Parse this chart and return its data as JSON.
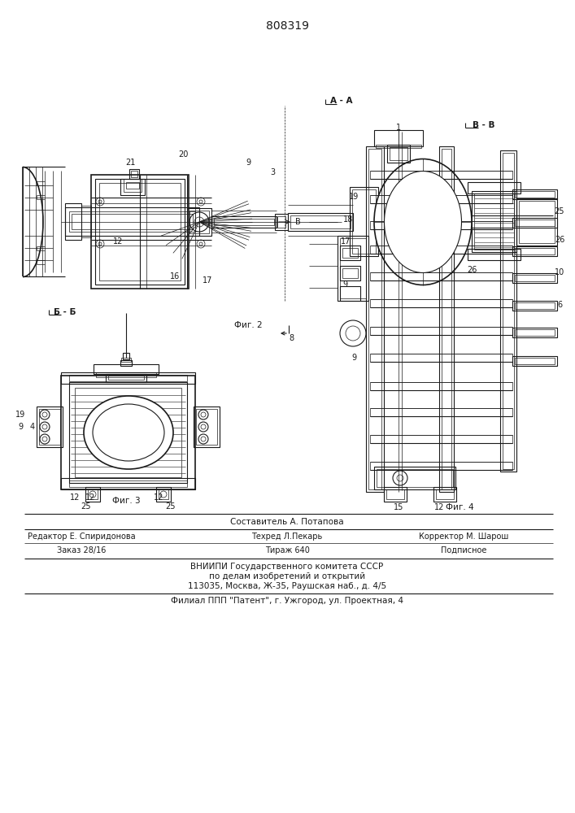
{
  "patent_number": "808319",
  "compositor": "Составитель А. Потапова",
  "editor": "Редактор Е. Спиридонова",
  "techred": "Техред Л.Пекарь",
  "corrector": "Корректор М. Шарош",
  "order": "Заказ 28/16",
  "tirazh": "Тираж 640",
  "podpisnoe": "Подписное",
  "vnipi_line1": "ВНИИПИ Государственного комитета СССР",
  "vnipi_line2": "по делам изобретений и открытий",
  "vnipi_line3": "113035, Москва, Ж-35, Раушская наб., д. 4/5",
  "filial": "Филиал ППП \"Патент\", г. Ужгород, ул. Проектная, 4",
  "fig2_label": "Фиг. 2",
  "fig3_label": "Фиг. 3",
  "fig4_label": "Фиг. 4",
  "section_aa": "А - А",
  "section_bb": "В - В",
  "section_b5b5": "Б - Б",
  "bg_color": "#ffffff",
  "line_color": "#1a1a1a",
  "fig_width": 7.07,
  "fig_height": 10.0
}
